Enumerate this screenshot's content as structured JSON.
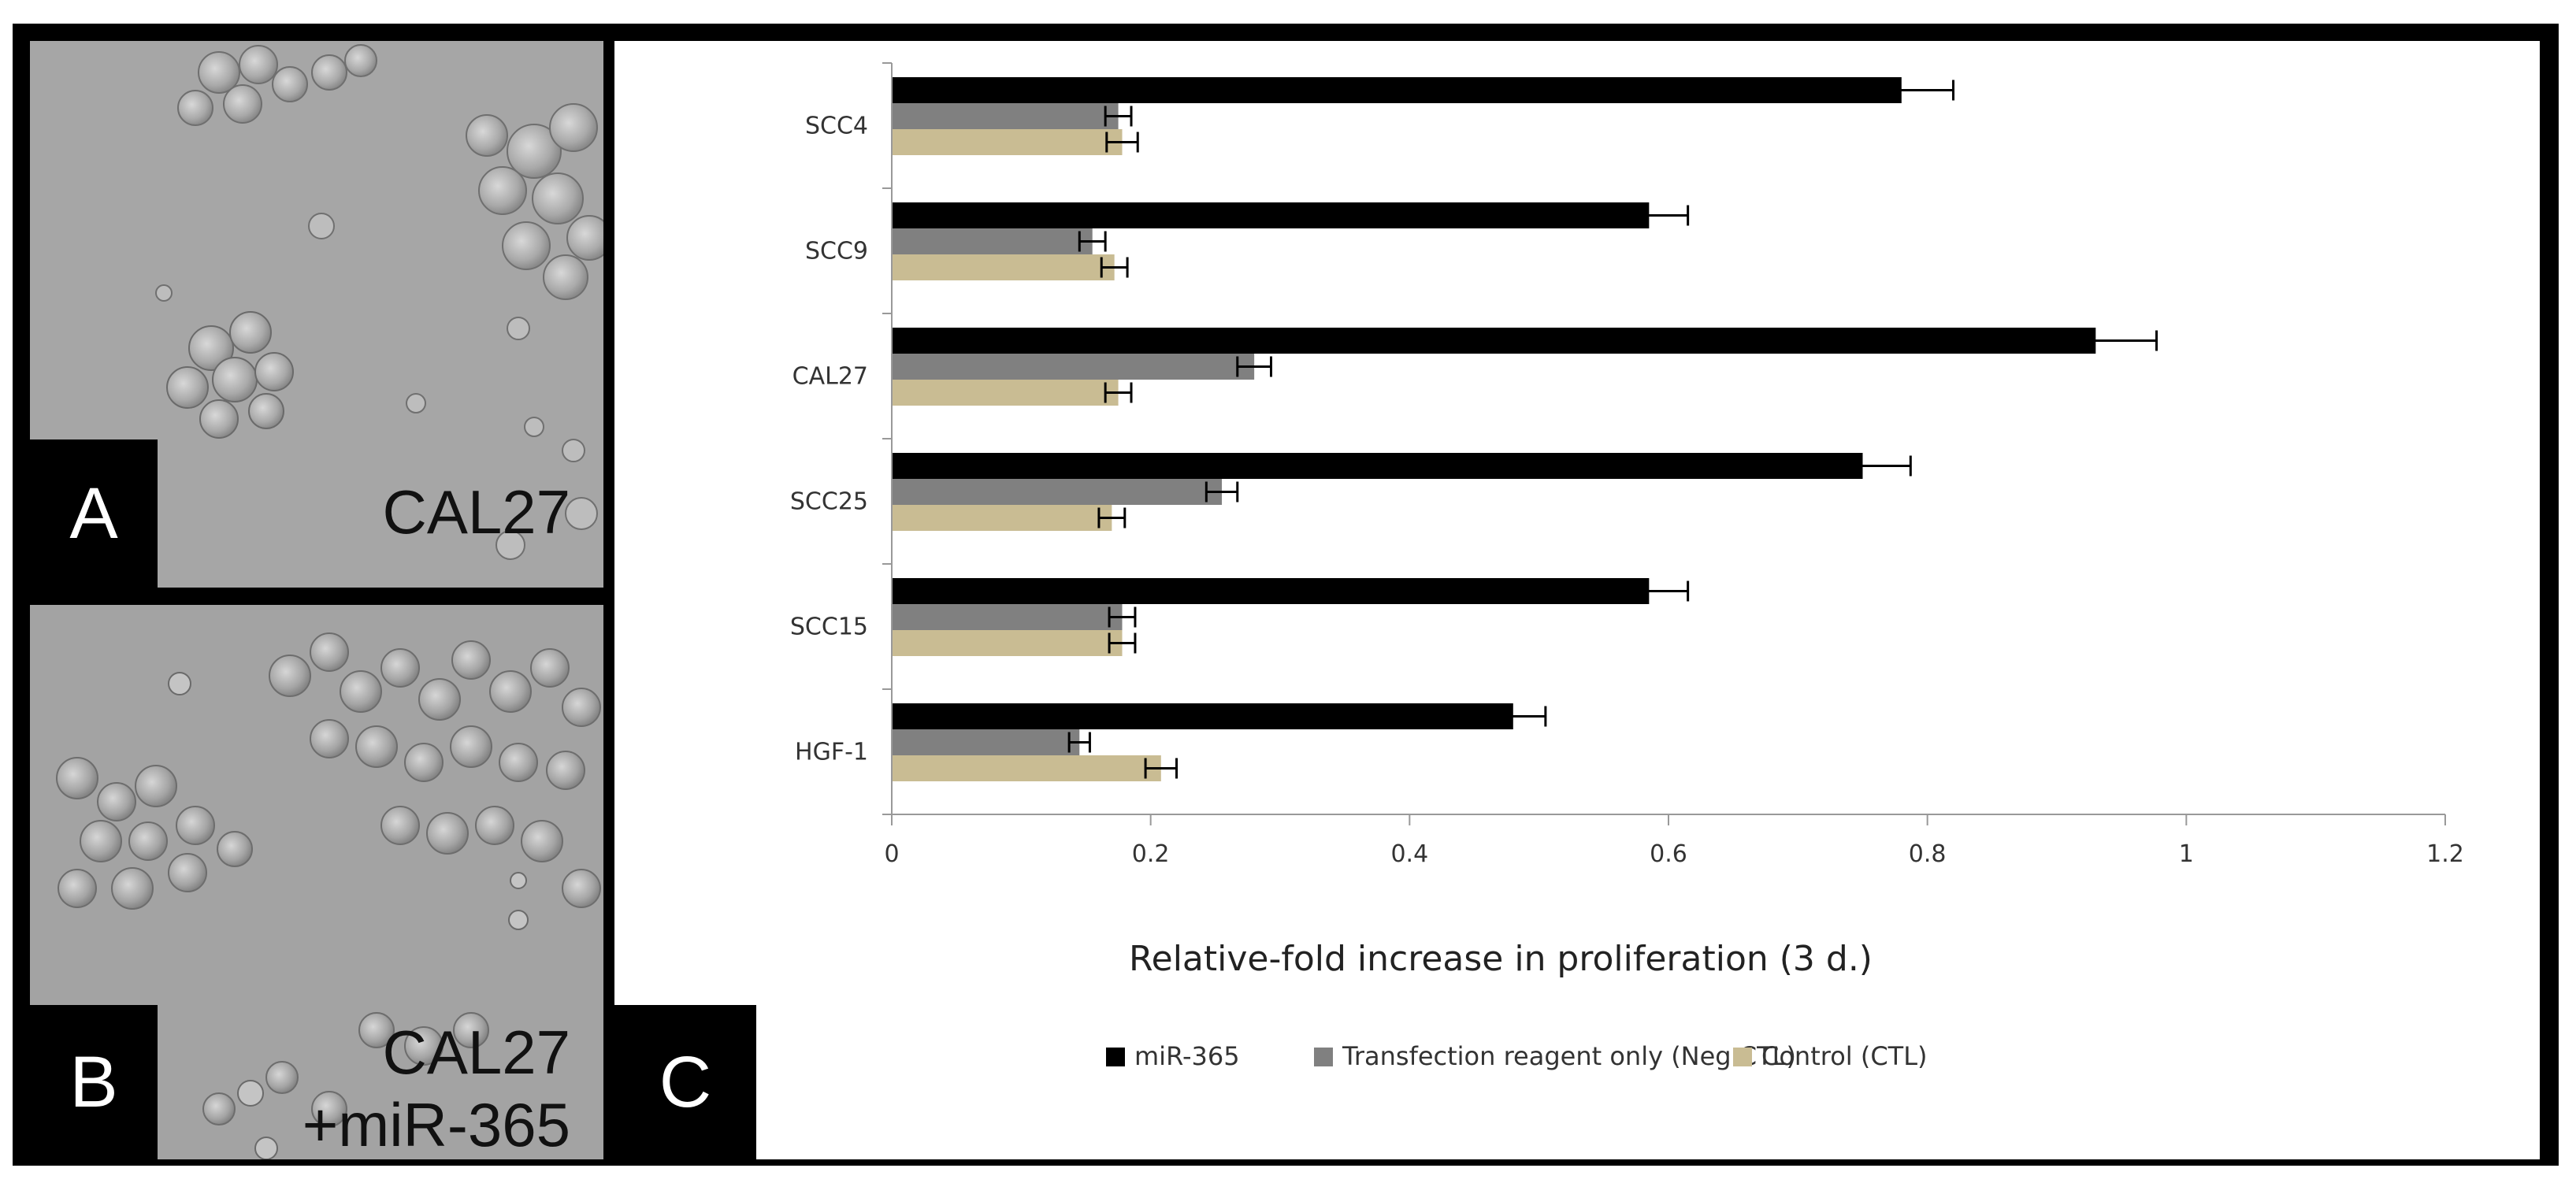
{
  "panels": {
    "a": {
      "letter": "A",
      "caption": "CAL27"
    },
    "b": {
      "letter": "B",
      "caption_line1": "CAL27",
      "caption_line2": "+miR-365"
    },
    "c": {
      "letter": "C"
    }
  },
  "colors": {
    "frame": "#000000",
    "mir365": "#000000",
    "neg_ctl": "#808080",
    "ctl": "#C9BC93",
    "axis": "#999999"
  },
  "chart_data": {
    "type": "bar",
    "orientation": "horizontal",
    "title": "",
    "xlabel": "Relative-fold increase in proliferation (3 d.)",
    "ylabel": "",
    "xlim": [
      0,
      1.2
    ],
    "x_ticks": [
      "0",
      "0.2",
      "0.4",
      "0.6",
      "0.8",
      "1",
      "1.2"
    ],
    "grid": false,
    "legend_position": "bottom",
    "categories": [
      "SCC4",
      "SCC9",
      "CAL27",
      "SCC25",
      "SCC15",
      "HGF-1"
    ],
    "series": [
      {
        "name": "miR-365",
        "color_key": "mir365",
        "values": [
          0.78,
          0.585,
          0.93,
          0.75,
          0.585,
          0.48
        ],
        "errors": [
          0.04,
          0.03,
          0.047,
          0.037,
          0.03,
          0.025
        ]
      },
      {
        "name": "Transfection reagent only (Neg CTL)",
        "color_key": "neg_ctl",
        "values": [
          0.175,
          0.155,
          0.28,
          0.255,
          0.178,
          0.145
        ],
        "errors": [
          0.01,
          0.01,
          0.013,
          0.012,
          0.01,
          0.008
        ]
      },
      {
        "name": "Control (CTL)",
        "color_key": "ctl",
        "values": [
          0.178,
          0.172,
          0.175,
          0.17,
          0.178,
          0.208
        ],
        "errors": [
          0.012,
          0.01,
          0.01,
          0.01,
          0.01,
          0.012
        ]
      }
    ]
  }
}
